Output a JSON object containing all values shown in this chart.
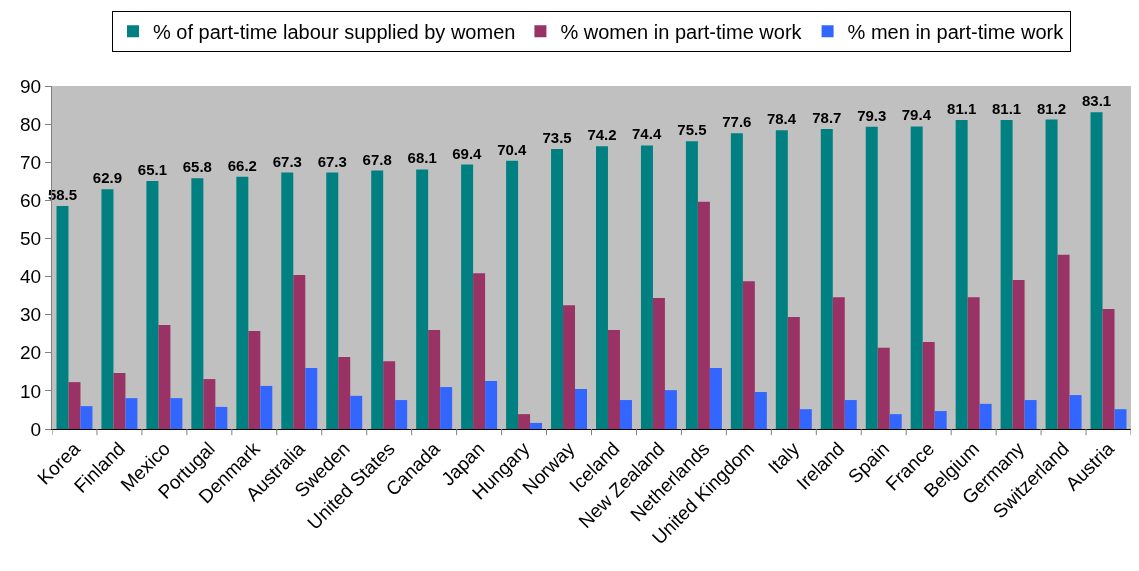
{
  "chart_data": {
    "type": "bar",
    "categories": [
      "Korea",
      "Finland",
      "Mexico",
      "Portugal",
      "Denmark",
      "Australia",
      "Sweden",
      "United States",
      "Canada",
      "Japan",
      "Hungary",
      "Norway",
      "Iceland",
      "New Zealand",
      "Netherlands",
      "United Kingdom",
      "Italy",
      "Ireland",
      "Spain",
      "France",
      "Belgium",
      "Germany",
      "Switzerland",
      "Austria"
    ],
    "series": [
      {
        "name": "% of part-time labour supplied by women",
        "color": "#008080",
        "values": [
          58.5,
          62.9,
          65.1,
          65.8,
          66.2,
          67.3,
          67.3,
          67.8,
          68.1,
          69.4,
          70.4,
          73.5,
          74.2,
          74.4,
          75.5,
          77.6,
          78.4,
          78.7,
          79.3,
          79.4,
          81.1,
          81.1,
          81.2,
          83.1
        ],
        "value_labels": [
          "58.5",
          "62.9",
          "65.1",
          "65.8",
          "66.2",
          "67.3",
          "67.3",
          "67.8",
          "68.1",
          "69.4",
          "70.4",
          "73.5",
          "74.2",
          "74.4",
          "75.5",
          "77.6",
          "78.4",
          "78.7",
          "79.3",
          "79.4",
          "81.1",
          "81.1",
          "81.2",
          "83.1"
        ]
      },
      {
        "name": "% women in part-time work",
        "color": "#993366",
        "values": [
          12.3,
          14.7,
          27.3,
          13.1,
          25.7,
          40.4,
          18.9,
          17.8,
          26.0,
          40.9,
          3.9,
          32.5,
          26.0,
          34.4,
          59.6,
          38.8,
          29.4,
          34.6,
          21.3,
          22.8,
          34.6,
          39.1,
          45.7,
          31.5
        ]
      },
      {
        "name": "% men in part-time work",
        "color": "#3366ff",
        "values": [
          6.0,
          8.1,
          8.1,
          5.8,
          11.3,
          16.0,
          8.7,
          7.6,
          11.0,
          12.6,
          1.6,
          10.5,
          7.6,
          10.2,
          16.0,
          9.7,
          5.2,
          7.6,
          3.9,
          4.7,
          6.6,
          7.6,
          8.9,
          5.2
        ]
      }
    ],
    "ylim": [
      0,
      90
    ],
    "yticks": [
      0,
      10,
      20,
      30,
      40,
      50,
      60,
      70,
      80,
      90
    ],
    "legend": "top"
  }
}
